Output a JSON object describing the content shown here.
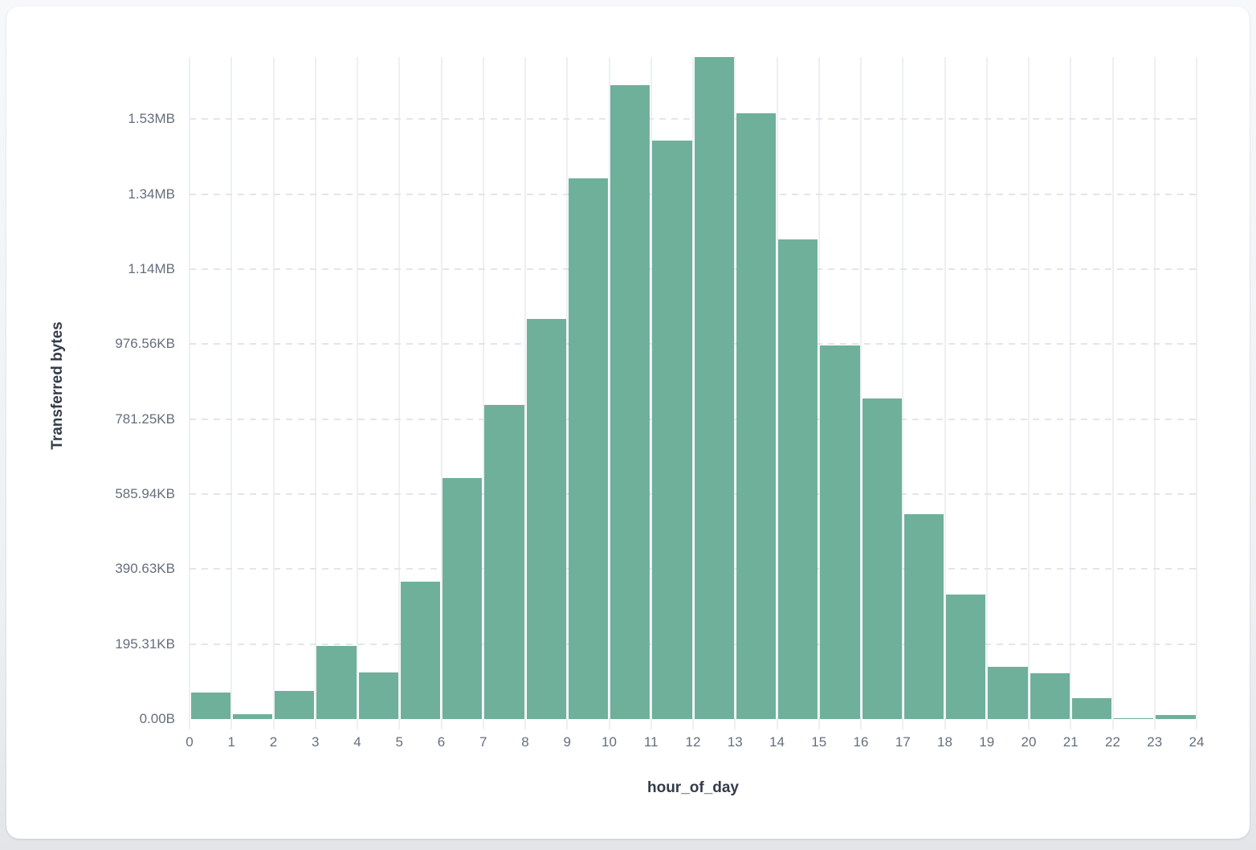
{
  "page": {
    "background_color": "#eef0f3",
    "card_background_color": "#ffffff"
  },
  "chart": {
    "y_axis_title": "Transferred bytes",
    "x_axis_title": "hour_of_day",
    "bar_color": "#6fb09b",
    "vgrid_color": "#edeff3",
    "hgrid_dash_color": "#e2e5ea",
    "tick_label_color": "#666e7b",
    "axis_title_color": "#343b49"
  },
  "chart_data": {
    "type": "bar",
    "title": "",
    "xlabel": "hour_of_day",
    "ylabel": "Transferred bytes",
    "x_range": [
      0,
      24
    ],
    "y_range_bytes": [
      0,
      1766000
    ],
    "grid": true,
    "legend_position": "none",
    "bin_width_hours": 1,
    "categories_hour_bins": [
      0,
      1,
      2,
      3,
      4,
      5,
      6,
      7,
      8,
      9,
      10,
      11,
      12,
      13,
      14,
      15,
      16,
      17,
      18,
      19,
      20,
      21,
      22,
      23
    ],
    "values_bytes": [
      71000,
      13000,
      76000,
      195000,
      124000,
      367000,
      642000,
      838000,
      1068000,
      1443000,
      1691000,
      1544000,
      1766000,
      1615000,
      1280000,
      997000,
      855000,
      546000,
      333000,
      139000,
      122000,
      55000,
      2000,
      11000
    ],
    "x_tick_labels": [
      "0",
      "1",
      "2",
      "3",
      "4",
      "5",
      "6",
      "7",
      "8",
      "9",
      "10",
      "11",
      "12",
      "13",
      "14",
      "15",
      "16",
      "17",
      "18",
      "19",
      "20",
      "21",
      "22",
      "23",
      "24"
    ],
    "y_ticks": [
      {
        "label": "0.00B",
        "value_bytes": 0
      },
      {
        "label": "195.31KB",
        "value_bytes": 200000
      },
      {
        "label": "390.63KB",
        "value_bytes": 400000
      },
      {
        "label": "585.94KB",
        "value_bytes": 600000
      },
      {
        "label": "781.25KB",
        "value_bytes": 800000
      },
      {
        "label": "976.56KB",
        "value_bytes": 1000000
      },
      {
        "label": "1.14MB",
        "value_bytes": 1200000
      },
      {
        "label": "1.34MB",
        "value_bytes": 1400000
      },
      {
        "label": "1.53MB",
        "value_bytes": 1600000
      }
    ]
  }
}
